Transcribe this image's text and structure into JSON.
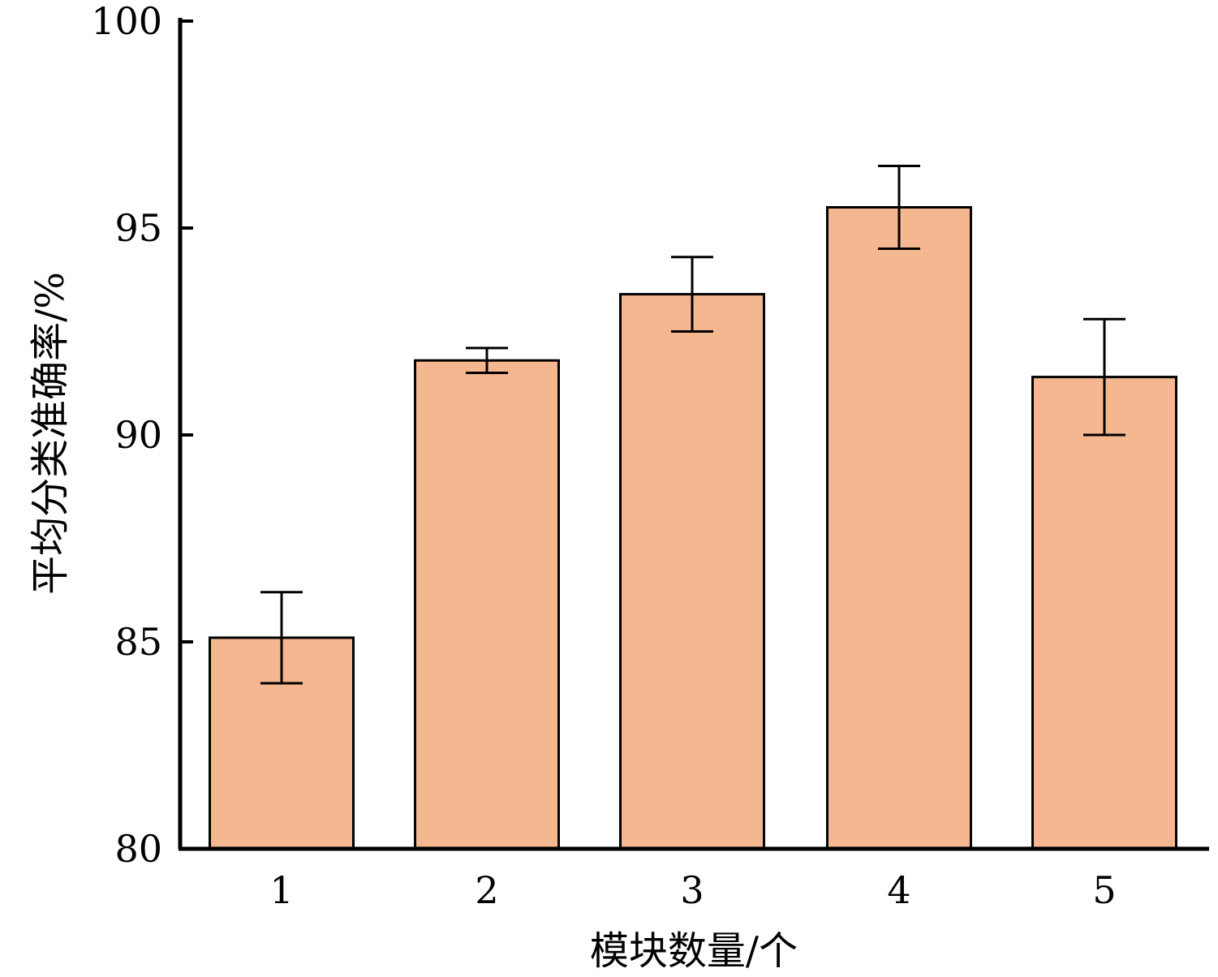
{
  "chart_data": {
    "type": "bar",
    "title": "",
    "xlabel": "模块数量/个",
    "ylabel": "平均分类准确率/%",
    "categories": [
      "1",
      "2",
      "3",
      "4",
      "5"
    ],
    "series": [
      {
        "values": [
          85.1,
          91.8,
          93.4,
          95.5,
          91.4
        ],
        "error_low": [
          84.0,
          91.5,
          92.5,
          94.5,
          90.0
        ],
        "error_high": [
          86.2,
          92.1,
          94.3,
          96.5,
          92.8
        ]
      }
    ],
    "ylim": [
      80,
      100
    ],
    "yticks": [
      "80",
      "85",
      "90",
      "95",
      "100"
    ],
    "grid": false,
    "legend": "none",
    "colors": {
      "bar_fill": "#F5B78F",
      "bar_stroke": "#000000",
      "axis": "#000000"
    }
  }
}
